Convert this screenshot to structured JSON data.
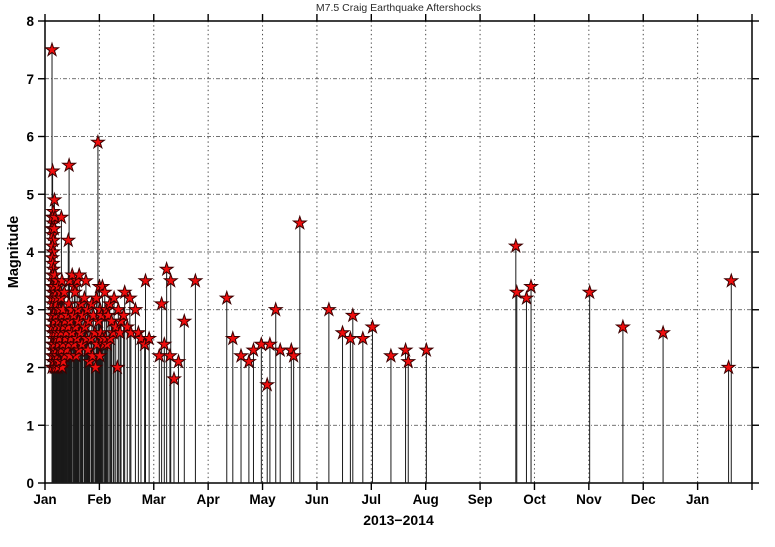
{
  "chart_data": {
    "type": "stem",
    "title": "M7.5 Craig Earthquake Aftershocks",
    "xlabel": "2013−2014",
    "ylabel": "Magnitude",
    "ylim": [
      0,
      8
    ],
    "yticks": [
      0,
      1,
      2,
      3,
      4,
      5,
      6,
      7,
      8
    ],
    "x_tick_labels": [
      "Jan",
      "Feb",
      "Mar",
      "Apr",
      "May",
      "Jun",
      "Jul",
      "Aug",
      "Sep",
      "Oct",
      "Nov",
      "Dec",
      "Jan"
    ],
    "x_axis_span_months": 13,
    "grid": true,
    "legend": "none",
    "marker": "red-pentagram-star",
    "colors": {
      "stem": "#1a1a1a",
      "star_fill": "#ef0d0d",
      "star_edge": "#3c0000",
      "grid": "#444444",
      "axis": "#000000",
      "title_text": "#2b2b2b"
    },
    "series_format": [
      "date_estimated",
      "magnitude"
    ],
    "events": [
      [
        "2013-01-05",
        7.5
      ],
      [
        "2013-01-05",
        5.4
      ],
      [
        "2013-01-05",
        4.7
      ],
      [
        "2013-01-05",
        4.6
      ],
      [
        "2013-01-05",
        4.5
      ],
      [
        "2013-01-05",
        4.4
      ],
      [
        "2013-01-05",
        4.3
      ],
      [
        "2013-01-05",
        4.2
      ],
      [
        "2013-01-05",
        4.1
      ],
      [
        "2013-01-05",
        4.0
      ],
      [
        "2013-01-05",
        3.9
      ],
      [
        "2013-01-05",
        3.8
      ],
      [
        "2013-01-05",
        3.7
      ],
      [
        "2013-01-05",
        3.6
      ],
      [
        "2013-01-05",
        3.5
      ],
      [
        "2013-01-05",
        3.4
      ],
      [
        "2013-01-05",
        3.3
      ],
      [
        "2013-01-05",
        3.2
      ],
      [
        "2013-01-05",
        3.1
      ],
      [
        "2013-01-05",
        3.0
      ],
      [
        "2013-01-05",
        2.9
      ],
      [
        "2013-01-05",
        2.8
      ],
      [
        "2013-01-05",
        2.7
      ],
      [
        "2013-01-05",
        2.6
      ],
      [
        "2013-01-05",
        2.5
      ],
      [
        "2013-01-05",
        2.4
      ],
      [
        "2013-01-05",
        2.3
      ],
      [
        "2013-01-05",
        2.2
      ],
      [
        "2013-01-05",
        2.1
      ],
      [
        "2013-01-05",
        2.0
      ],
      [
        "2013-01-06",
        4.9
      ],
      [
        "2013-01-06",
        4.6
      ],
      [
        "2013-01-06",
        4.4
      ],
      [
        "2013-01-06",
        3.6
      ],
      [
        "2013-01-06",
        3.4
      ],
      [
        "2013-01-06",
        3.2
      ],
      [
        "2013-01-06",
        3.0
      ],
      [
        "2013-01-06",
        2.8
      ],
      [
        "2013-01-06",
        2.6
      ],
      [
        "2013-01-06",
        2.4
      ],
      [
        "2013-01-06",
        2.2
      ],
      [
        "2013-01-06",
        2.1
      ],
      [
        "2013-01-06",
        2.0
      ],
      [
        "2013-01-07",
        3.5
      ],
      [
        "2013-01-07",
        3.3
      ],
      [
        "2013-01-07",
        3.1
      ],
      [
        "2013-01-07",
        2.9
      ],
      [
        "2013-01-07",
        2.7
      ],
      [
        "2013-01-07",
        2.5
      ],
      [
        "2013-01-07",
        2.3
      ],
      [
        "2013-01-07",
        2.1
      ],
      [
        "2013-01-07",
        2.0
      ],
      [
        "2013-01-08",
        3.4
      ],
      [
        "2013-01-08",
        3.2
      ],
      [
        "2013-01-08",
        3.0
      ],
      [
        "2013-01-08",
        2.8
      ],
      [
        "2013-01-08",
        2.6
      ],
      [
        "2013-01-08",
        2.4
      ],
      [
        "2013-01-08",
        2.2
      ],
      [
        "2013-01-08",
        2.0
      ],
      [
        "2013-01-09",
        3.3
      ],
      [
        "2013-01-09",
        3.0
      ],
      [
        "2013-01-09",
        2.7
      ],
      [
        "2013-01-09",
        2.5
      ],
      [
        "2013-01-09",
        2.3
      ],
      [
        "2013-01-09",
        2.1
      ],
      [
        "2013-01-10",
        4.6
      ],
      [
        "2013-01-10",
        3.5
      ],
      [
        "2013-01-10",
        3.2
      ],
      [
        "2013-01-10",
        2.9
      ],
      [
        "2013-01-10",
        2.6
      ],
      [
        "2013-01-10",
        2.3
      ],
      [
        "2013-01-10",
        2.0
      ],
      [
        "2013-01-11",
        3.0
      ],
      [
        "2013-01-11",
        2.7
      ],
      [
        "2013-01-11",
        2.4
      ],
      [
        "2013-01-11",
        2.1
      ],
      [
        "2013-01-12",
        3.3
      ],
      [
        "2013-01-12",
        2.8
      ],
      [
        "2013-01-12",
        2.5
      ],
      [
        "2013-01-12",
        2.2
      ],
      [
        "2013-01-13",
        2.9
      ],
      [
        "2013-01-13",
        2.6
      ],
      [
        "2013-01-13",
        2.3
      ],
      [
        "2013-01-14",
        5.5
      ],
      [
        "2013-01-14",
        4.2
      ],
      [
        "2013-01-14",
        3.1
      ],
      [
        "2013-01-14",
        2.7
      ],
      [
        "2013-01-14",
        2.4
      ],
      [
        "2013-01-15",
        3.5
      ],
      [
        "2013-01-15",
        2.8
      ],
      [
        "2013-01-15",
        2.5
      ],
      [
        "2013-01-15",
        2.2
      ],
      [
        "2013-01-16",
        3.6
      ],
      [
        "2013-01-16",
        3.0
      ],
      [
        "2013-01-16",
        2.6
      ],
      [
        "2013-01-17",
        3.4
      ],
      [
        "2013-01-17",
        2.9
      ],
      [
        "2013-01-17",
        2.4
      ],
      [
        "2013-01-18",
        3.3
      ],
      [
        "2013-01-18",
        2.7
      ],
      [
        "2013-01-18",
        2.2
      ],
      [
        "2013-01-19",
        3.5
      ],
      [
        "2013-01-19",
        3.0
      ],
      [
        "2013-01-19",
        2.5
      ],
      [
        "2013-01-20",
        3.6
      ],
      [
        "2013-01-20",
        2.8
      ],
      [
        "2013-01-20",
        2.3
      ],
      [
        "2013-01-21",
        3.1
      ],
      [
        "2013-01-21",
        2.6
      ],
      [
        "2013-01-22",
        2.9
      ],
      [
        "2013-01-22",
        2.4
      ],
      [
        "2013-01-23",
        3.2
      ],
      [
        "2013-01-23",
        2.7
      ],
      [
        "2013-01-24",
        3.5
      ],
      [
        "2013-01-24",
        2.5
      ],
      [
        "2013-01-25",
        3.0
      ],
      [
        "2013-01-25",
        2.3
      ],
      [
        "2013-01-26",
        2.8
      ],
      [
        "2013-01-26",
        2.1
      ],
      [
        "2013-01-27",
        3.1
      ],
      [
        "2013-01-27",
        2.5
      ],
      [
        "2013-01-28",
        2.9
      ],
      [
        "2013-01-28",
        2.2
      ],
      [
        "2013-01-29",
        2.6
      ],
      [
        "2013-01-29",
        2.0
      ],
      [
        "2013-01-30",
        3.2
      ],
      [
        "2013-01-30",
        2.4
      ],
      [
        "2013-01-31",
        5.9
      ],
      [
        "2013-01-31",
        2.8
      ],
      [
        "2013-02-01",
        3.4
      ],
      [
        "2013-02-01",
        3.0
      ],
      [
        "2013-02-01",
        2.6
      ],
      [
        "2013-02-01",
        2.2
      ],
      [
        "2013-02-02",
        3.4
      ],
      [
        "2013-02-02",
        2.9
      ],
      [
        "2013-02-02",
        2.5
      ],
      [
        "2013-02-03",
        3.3
      ],
      [
        "2013-02-03",
        2.4
      ],
      [
        "2013-02-04",
        3.0
      ],
      [
        "2013-02-04",
        2.5
      ],
      [
        "2013-02-05",
        2.9
      ],
      [
        "2013-02-05",
        2.4
      ],
      [
        "2013-02-06",
        3.1
      ],
      [
        "2013-02-06",
        2.5
      ],
      [
        "2013-02-07",
        2.8
      ],
      [
        "2013-02-08",
        3.2
      ],
      [
        "2013-02-08",
        2.6
      ],
      [
        "2013-02-09",
        2.7
      ],
      [
        "2013-02-10",
        3.0
      ],
      [
        "2013-02-10",
        2.0
      ],
      [
        "2013-02-11",
        2.6
      ],
      [
        "2013-02-12",
        2.8
      ],
      [
        "2013-02-13",
        2.9
      ],
      [
        "2013-02-14",
        3.3
      ],
      [
        "2013-02-15",
        2.7
      ],
      [
        "2013-02-16",
        3.2
      ],
      [
        "2013-02-17",
        2.6
      ],
      [
        "2013-02-19",
        3.0
      ],
      [
        "2013-02-21",
        2.6
      ],
      [
        "2013-02-22",
        2.5
      ],
      [
        "2013-02-24",
        3.5
      ],
      [
        "2013-02-24",
        2.4
      ],
      [
        "2013-02-26",
        2.5
      ],
      [
        "2013-03-04",
        2.2
      ],
      [
        "2013-03-05",
        3.1
      ],
      [
        "2013-03-07",
        2.4
      ],
      [
        "2013-03-08",
        3.7
      ],
      [
        "2013-03-10",
        3.5
      ],
      [
        "2013-03-10",
        2.2
      ],
      [
        "2013-03-12",
        1.8
      ],
      [
        "2013-03-15",
        2.1
      ],
      [
        "2013-03-18",
        2.8
      ],
      [
        "2013-03-24",
        3.5
      ],
      [
        "2013-04-11",
        3.2
      ],
      [
        "2013-04-14",
        2.5
      ],
      [
        "2013-04-19",
        2.2
      ],
      [
        "2013-04-23",
        2.1
      ],
      [
        "2013-04-26",
        2.3
      ],
      [
        "2013-04-30",
        2.4
      ],
      [
        "2013-05-03",
        1.7
      ],
      [
        "2013-05-05",
        2.4
      ],
      [
        "2013-05-08",
        3.0
      ],
      [
        "2013-05-11",
        2.3
      ],
      [
        "2013-05-17",
        2.3
      ],
      [
        "2013-05-18",
        2.2
      ],
      [
        "2013-05-22",
        4.5
      ],
      [
        "2013-06-07",
        3.0
      ],
      [
        "2013-06-15",
        2.6
      ],
      [
        "2013-06-19",
        2.5
      ],
      [
        "2013-06-20",
        2.9
      ],
      [
        "2013-06-26",
        2.5
      ],
      [
        "2013-07-01",
        2.7
      ],
      [
        "2013-07-12",
        2.2
      ],
      [
        "2013-07-20",
        2.3
      ],
      [
        "2013-07-22",
        2.1
      ],
      [
        "2013-08-01",
        2.3
      ],
      [
        "2013-09-20",
        4.1
      ],
      [
        "2013-09-21",
        3.3
      ],
      [
        "2013-09-26",
        3.2
      ],
      [
        "2013-09-29",
        3.4
      ],
      [
        "2013-11-01",
        3.3
      ],
      [
        "2013-11-19",
        2.7
      ],
      [
        "2013-12-12",
        2.6
      ],
      [
        "2014-01-18",
        2.0
      ],
      [
        "2014-01-20",
        3.5
      ]
    ]
  }
}
